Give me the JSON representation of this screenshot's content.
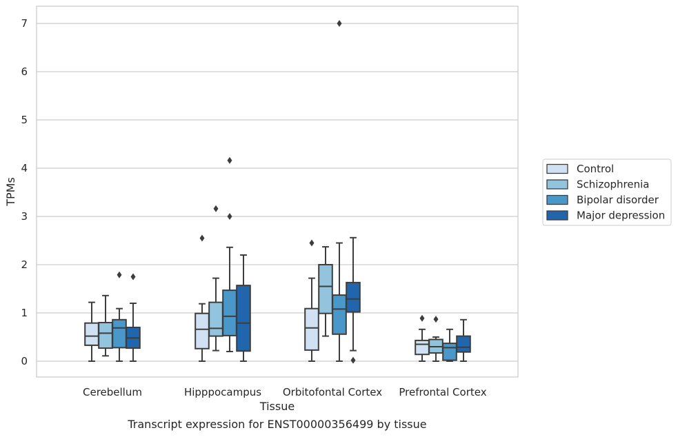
{
  "chart_data": {
    "type": "box",
    "xlabel": "Tissue",
    "ylabel": "TPMs",
    "caption": "Transcript expression for ENST00000356499 by tissue",
    "categories": [
      "Cerebellum",
      "Hipppocampus",
      "Orbitofontal Cortex",
      "Prefrontal Cortex"
    ],
    "ylim": [
      -0.33,
      7.37
    ],
    "yticks": [
      0,
      1,
      2,
      3,
      4,
      5,
      6,
      7
    ],
    "grid": true,
    "legend_position": "right",
    "series": [
      {
        "name": "Control",
        "color": "#cfe1f2",
        "boxes": [
          {
            "whisker_low": 0.0,
            "q1": 0.33,
            "median": 0.52,
            "q3": 0.79,
            "whisker_high": 1.22,
            "outliers": []
          },
          {
            "whisker_low": 0.0,
            "q1": 0.26,
            "median": 0.66,
            "q3": 0.99,
            "whisker_high": 1.19,
            "outliers": [
              2.55
            ]
          },
          {
            "whisker_low": 0.0,
            "q1": 0.23,
            "median": 0.69,
            "q3": 1.09,
            "whisker_high": 1.72,
            "outliers": [
              2.45
            ]
          },
          {
            "whisker_low": 0.0,
            "q1": 0.14,
            "median": 0.35,
            "q3": 0.43,
            "whisker_high": 0.66,
            "outliers": [
              0.89
            ]
          }
        ]
      },
      {
        "name": "Schizophrenia",
        "color": "#93c4de",
        "boxes": [
          {
            "whisker_low": 0.11,
            "q1": 0.27,
            "median": 0.58,
            "q3": 0.8,
            "whisker_high": 1.36,
            "outliers": []
          },
          {
            "whisker_low": 0.22,
            "q1": 0.52,
            "median": 0.68,
            "q3": 1.22,
            "whisker_high": 1.72,
            "outliers": [
              3.16
            ]
          },
          {
            "whisker_low": 0.52,
            "q1": 0.99,
            "median": 1.55,
            "q3": 2.0,
            "whisker_high": 2.37,
            "outliers": []
          },
          {
            "whisker_low": 0.0,
            "q1": 0.17,
            "median": 0.3,
            "q3": 0.45,
            "whisker_high": 0.5,
            "outliers": [
              0.87
            ]
          }
        ]
      },
      {
        "name": "Bipolar disorder",
        "color": "#4a98c9",
        "boxes": [
          {
            "whisker_low": 0.0,
            "q1": 0.28,
            "median": 0.69,
            "q3": 0.86,
            "whisker_high": 1.09,
            "outliers": [
              1.79
            ]
          },
          {
            "whisker_low": 0.2,
            "q1": 0.53,
            "median": 0.93,
            "q3": 1.47,
            "whisker_high": 2.36,
            "outliers": [
              3.0,
              4.16
            ]
          },
          {
            "whisker_low": 0.0,
            "q1": 0.56,
            "median": 1.08,
            "q3": 1.37,
            "whisker_high": 2.45,
            "outliers": [
              7.0
            ]
          },
          {
            "whisker_low": 0.0,
            "q1": 0.02,
            "median": 0.28,
            "q3": 0.37,
            "whisker_high": 0.66,
            "outliers": []
          }
        ]
      },
      {
        "name": "Major depression",
        "color": "#2166ac",
        "boxes": [
          {
            "whisker_low": 0.0,
            "q1": 0.27,
            "median": 0.48,
            "q3": 0.7,
            "whisker_high": 1.2,
            "outliers": [
              1.75
            ]
          },
          {
            "whisker_low": 0.0,
            "q1": 0.21,
            "median": 0.79,
            "q3": 1.57,
            "whisker_high": 2.2,
            "outliers": []
          },
          {
            "whisker_low": 0.22,
            "q1": 1.02,
            "median": 1.29,
            "q3": 1.63,
            "whisker_high": 2.56,
            "outliers": [
              0.02
            ]
          },
          {
            "whisker_low": 0.0,
            "q1": 0.19,
            "median": 0.29,
            "q3": 0.52,
            "whisker_high": 0.86,
            "outliers": []
          }
        ]
      }
    ]
  }
}
